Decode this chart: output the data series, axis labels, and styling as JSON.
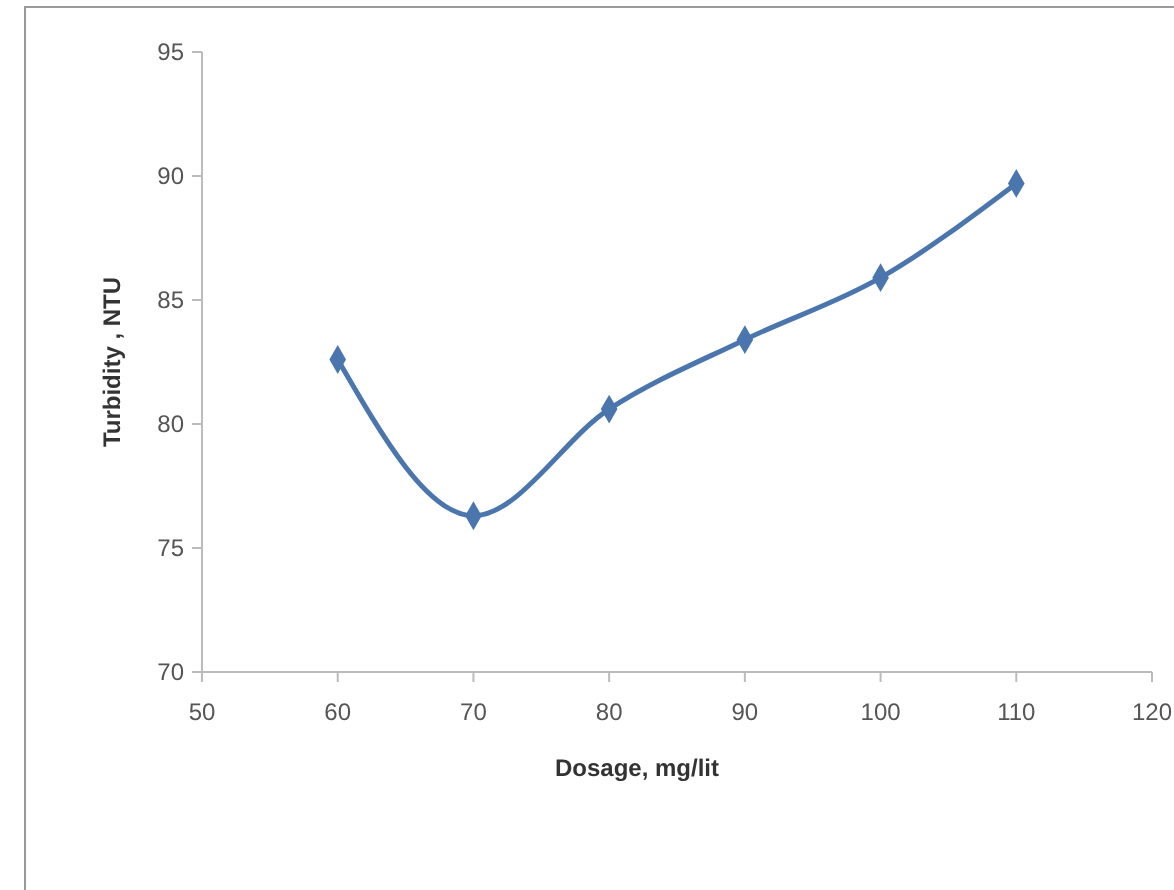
{
  "chart_data": {
    "type": "line",
    "xlabel": "Dosage, mg/lit",
    "ylabel": "Turbidity , NTU",
    "x": [
      60,
      70,
      80,
      90,
      100,
      110
    ],
    "series": [
      {
        "color": "#4a76ad",
        "values": [
          82.6,
          76.3,
          80.6,
          83.4,
          85.9,
          89.7
        ]
      }
    ],
    "xlim": [
      50,
      120
    ],
    "xticks": [
      50,
      60,
      70,
      80,
      90,
      100,
      110,
      120
    ],
    "ylim": [
      70,
      95
    ],
    "yticks": [
      70,
      75,
      80,
      85,
      90,
      95
    ],
    "marker": "diamond",
    "line_style": "solid",
    "grid": false
  }
}
